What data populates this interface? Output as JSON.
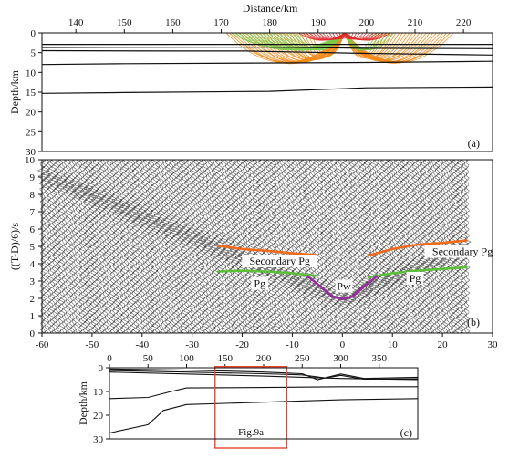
{
  "figure": {
    "panel_a_label": "(a)",
    "panel_b_label": "(b)",
    "panel_c_label": "(c)"
  },
  "chart_data": [
    {
      "id": "a",
      "type": "line",
      "subtype": "ray-tracing-model",
      "xlabel": "Distance/km",
      "ylabel": "Depth/km",
      "x_axis_position": "top",
      "xlim": [
        133,
        226
      ],
      "ylim": [
        0,
        30
      ],
      "y_inverted": true,
      "xticks": [
        140,
        150,
        160,
        170,
        180,
        190,
        200,
        210,
        220
      ],
      "yticks": [
        0,
        5,
        10,
        15,
        20,
        25,
        30
      ],
      "layer_boundaries": [
        {
          "x": [
            133,
            170,
            200,
            226
          ],
          "y": [
            2.9,
            2.9,
            2.9,
            2.9
          ]
        },
        {
          "x": [
            133,
            170,
            180,
            200,
            226
          ],
          "y": [
            3.7,
            3.6,
            3.6,
            3.9,
            4.0
          ]
        },
        {
          "x": [
            133,
            160,
            175,
            200,
            226
          ],
          "y": [
            4.5,
            4.6,
            4.6,
            5.2,
            5.6
          ]
        },
        {
          "x": [
            133,
            150,
            200,
            226
          ],
          "y": [
            8.0,
            7.8,
            7.5,
            7.2
          ]
        },
        {
          "x": [
            133,
            150,
            180,
            200,
            226
          ],
          "y": [
            15.3,
            15.1,
            14.8,
            13.9,
            13.7
          ]
        }
      ],
      "ray_groups": [
        {
          "name": "Secondary Pg",
          "color": "#f28a1a",
          "source_x": 195.5,
          "x_range": [
            171,
            218
          ]
        },
        {
          "name": "Pg",
          "color": "#7cc84a",
          "source_x": 195.5,
          "x_range": [
            172,
            206
          ]
        },
        {
          "name": "Pw",
          "color": "#e02b2b",
          "source_x": 195.5,
          "x_range": [
            186,
            205
          ]
        }
      ]
    },
    {
      "id": "b",
      "type": "line",
      "subtype": "seismic-record-section",
      "xlabel": "",
      "ylabel": "((T-D)/6)/s",
      "xlim": [
        -60,
        30
      ],
      "ylim": [
        0,
        10
      ],
      "xticks": [
        -60,
        -50,
        -40,
        -30,
        -20,
        -10,
        0,
        10,
        20,
        30
      ],
      "yticks": [
        0,
        1,
        2,
        3,
        4,
        5,
        6,
        7,
        8,
        9,
        10
      ],
      "data_extent_x": [
        -60,
        25
      ],
      "series": [
        {
          "name": "Secondary Pg",
          "color": "#f26b1d",
          "x": [
            -25,
            -20,
            -15,
            -10,
            -5
          ],
          "y": [
            5.05,
            4.85,
            4.75,
            4.6,
            4.5
          ]
        },
        {
          "name": "Secondary Pg",
          "color": "#f26b1d",
          "x": [
            5,
            10,
            15,
            20,
            25
          ],
          "y": [
            4.45,
            4.85,
            5.1,
            5.2,
            5.35
          ]
        },
        {
          "name": "Pg",
          "color": "#5cbf3a",
          "x": [
            -25,
            -20,
            -15,
            -10,
            -5
          ],
          "y": [
            3.55,
            3.6,
            3.55,
            3.45,
            3.3
          ]
        },
        {
          "name": "Pg",
          "color": "#5cbf3a",
          "x": [
            5,
            10,
            15,
            20,
            25
          ],
          "y": [
            3.2,
            3.45,
            3.6,
            3.7,
            3.8
          ]
        },
        {
          "name": "Pw",
          "color": "#9a2aa0",
          "x": [
            -7,
            -4,
            -2,
            0,
            2,
            4,
            7
          ],
          "y": [
            3.3,
            2.6,
            2.1,
            1.95,
            2.1,
            2.6,
            3.3
          ]
        }
      ],
      "annotations": [
        {
          "text": "Secondary Pg",
          "x": -12.5,
          "y": 4.0
        },
        {
          "text": "Pg",
          "x": -16.5,
          "y": 2.7
        },
        {
          "text": "Pw",
          "x": 0.3,
          "y": 2.55
        },
        {
          "text": "Secondary Pg",
          "x": 24,
          "y": 4.55
        },
        {
          "text": "Pg",
          "x": 14.5,
          "y": 3.0
        }
      ]
    },
    {
      "id": "c",
      "type": "line",
      "subtype": "velocity-model-overview",
      "xlabel": "",
      "ylabel": "Depth/km",
      "x_axis_position": "top",
      "xlim": [
        0,
        400
      ],
      "ylim": [
        0,
        30
      ],
      "y_inverted": true,
      "xticks": [
        0,
        50,
        100,
        150,
        200,
        250,
        300,
        350
      ],
      "yticks": [
        0,
        10,
        20,
        30
      ],
      "layer_boundaries": [
        {
          "x": [
            0,
            100,
            200,
            250,
            270,
            300,
            330,
            400
          ],
          "y": [
            0.5,
            1.0,
            1.8,
            2.5,
            5.0,
            2.6,
            4.5,
            4.0
          ]
        },
        {
          "x": [
            0,
            100,
            200,
            250,
            280,
            300,
            330,
            400
          ],
          "y": [
            1.2,
            1.8,
            2.5,
            3.0,
            4.3,
            3.2,
            4.8,
            4.6
          ]
        },
        {
          "x": [
            0,
            100,
            200,
            250,
            300,
            400
          ],
          "y": [
            1.8,
            2.6,
            3.5,
            4.0,
            4.5,
            5.0
          ]
        },
        {
          "x": [
            0,
            50,
            80,
            100,
            200,
            300,
            400
          ],
          "y": [
            13.0,
            12.5,
            10.0,
            8.5,
            8.3,
            8.0,
            8.0
          ]
        },
        {
          "x": [
            0,
            50,
            70,
            100,
            150,
            200,
            300,
            400
          ],
          "y": [
            27.5,
            24.0,
            18.0,
            15.5,
            15.0,
            14.5,
            13.5,
            13.0
          ]
        }
      ],
      "highlight_box": {
        "label": "Fig.9a",
        "color": "#e8442e",
        "x": [
          137,
          230
        ],
        "y": [
          -0.5,
          30
        ]
      }
    }
  ]
}
